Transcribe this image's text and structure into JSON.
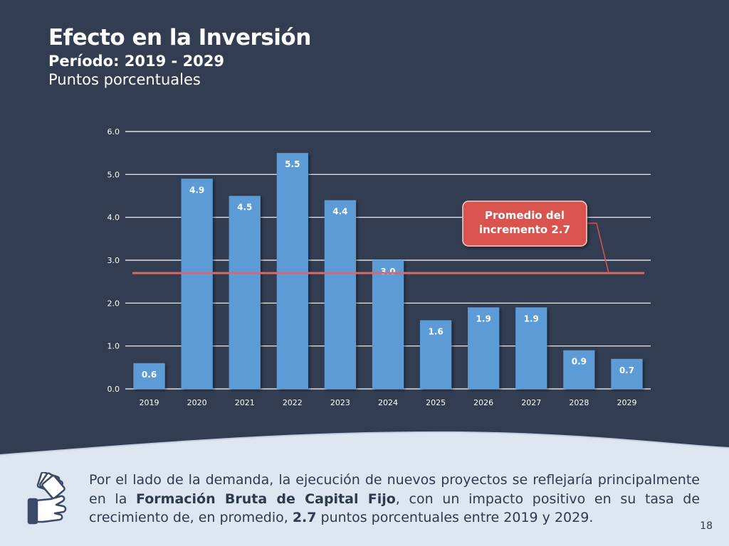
{
  "header": {
    "title": "Efecto en la Inversión",
    "subtitle": "Período: 2019 - 2029",
    "units": "Puntos porcentuales"
  },
  "chart_data": {
    "type": "bar",
    "categories": [
      "2019",
      "2020",
      "2021",
      "2022",
      "2023",
      "2024",
      "2025",
      "2026",
      "2027",
      "2028",
      "2029"
    ],
    "values": [
      0.6,
      4.9,
      4.5,
      5.5,
      4.4,
      3.0,
      1.6,
      1.9,
      1.9,
      0.9,
      0.7
    ],
    "data_labels": [
      "0.6",
      "4.9",
      "4.5",
      "5.5",
      "4.4",
      "3.0",
      "1.6",
      "1.9",
      "1.9",
      "0.9",
      "0.7"
    ],
    "ylim": [
      0,
      6
    ],
    "yticks": [
      "0.0",
      "1.0",
      "2.0",
      "3.0",
      "4.0",
      "5.0",
      "6.0"
    ],
    "grid": true,
    "average_line": 2.7,
    "annotation": [
      "Promedio del",
      "incremento 2.7"
    ],
    "colors": {
      "bar": "#5b9bd5",
      "average_line": "#e06666",
      "callout": "#d9534f"
    }
  },
  "footer": {
    "text_part1": "Por el lado de la demanda, la ejecución de nuevos proyectos se reflejaría principalmente en la ",
    "text_bold1": "Formación Bruta de Capital Fijo",
    "text_part2": ", con un impacto positivo en su tasa de crecimiento de, en promedio, ",
    "text_bold2": "2.7",
    "text_part3": " puntos porcentuales entre 2019 y 2029.",
    "icon": "hand-money-icon"
  },
  "page_number": "18",
  "colors": {
    "background": "#323d52",
    "footer_background": "#dde6f1",
    "footer_text": "#2e3a4e"
  }
}
